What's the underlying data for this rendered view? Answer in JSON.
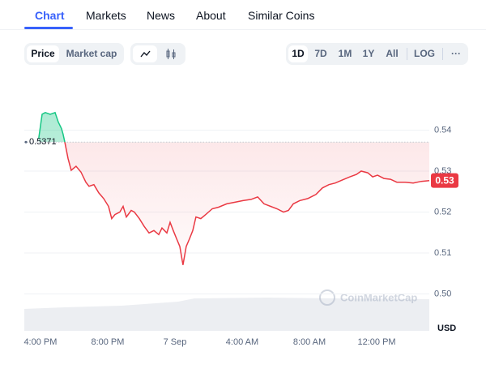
{
  "tabs": [
    "Chart",
    "Markets",
    "News",
    "About",
    "Similar Coins"
  ],
  "toggles": [
    "Price",
    "Market cap"
  ],
  "ranges": [
    "1D",
    "7D",
    "1M",
    "1Y",
    "All"
  ],
  "log_button": "LOG",
  "more_button": "···",
  "chart_data": {
    "type": "line",
    "x": [
      -0.1,
      0.1,
      0.29,
      0.58,
      0.87,
      1.06,
      1.25,
      1.35,
      1.45,
      1.64,
      1.83,
      2.12,
      2.41,
      2.7,
      2.89,
      3.18,
      3.47,
      3.76,
      4.05,
      4.24,
      4.43,
      4.72,
      4.92,
      5.11,
      5.4,
      5.59,
      5.88,
      6.17,
      6.46,
      6.75,
      7.04,
      7.23,
      7.52,
      7.71,
      7.9,
      8.1,
      8.29,
      8.48,
      8.67,
      8.87,
      9.06,
      9.25,
      9.54,
      9.83,
      10.22,
      10.6,
      11.08,
      11.57,
      12.05,
      12.53,
      12.92,
      13.3,
      13.69,
      14.07,
      14.46,
      14.75,
      15.04,
      15.42,
      15.9,
      16.39,
      16.77,
      17.16,
      17.54,
      17.93,
      18.41,
      18.8,
      19.08,
      19.47,
      19.76,
      20.05,
      20.43,
      20.82,
      21.2,
      21.69,
      22.17,
      22.65,
      23.13
    ],
    "values": [
      0.538,
      0.5439,
      0.5443,
      0.5439,
      0.5443,
      0.542,
      0.5404,
      0.539,
      0.5371,
      0.5331,
      0.5302,
      0.5312,
      0.5298,
      0.5273,
      0.5263,
      0.5267,
      0.5247,
      0.5233,
      0.5214,
      0.5184,
      0.5194,
      0.52,
      0.5214,
      0.5188,
      0.5204,
      0.52,
      0.5184,
      0.5165,
      0.5149,
      0.5155,
      0.5145,
      0.5161,
      0.5149,
      0.5175,
      0.5155,
      0.5135,
      0.5116,
      0.5071,
      0.5116,
      0.5135,
      0.5155,
      0.5188,
      0.5184,
      0.5194,
      0.5208,
      0.5212,
      0.522,
      0.5224,
      0.5228,
      0.5231,
      0.5237,
      0.522,
      0.5214,
      0.5208,
      0.52,
      0.5204,
      0.522,
      0.5228,
      0.5233,
      0.5243,
      0.5259,
      0.5267,
      0.5271,
      0.5278,
      0.5286,
      0.5292,
      0.53,
      0.5296,
      0.5286,
      0.529,
      0.5282,
      0.528,
      0.5273,
      0.5273,
      0.5271,
      0.5275,
      0.5277
    ],
    "xlim": [
      -0.96,
      23.13
    ],
    "ylim": [
      0.491,
      0.551
    ],
    "xticks": [
      {
        "value": 0,
        "label": "4:00 PM"
      },
      {
        "value": 4,
        "label": "8:00 PM"
      },
      {
        "value": 8,
        "label": "7 Sep"
      },
      {
        "value": 12,
        "label": "4:00 AM"
      },
      {
        "value": 16,
        "label": "8:00 AM"
      },
      {
        "value": 20,
        "label": "12:00 PM"
      }
    ],
    "yticks": [
      {
        "value": 0.5,
        "label": "0.50"
      },
      0.51,
      0.52,
      0.53,
      0.54
    ],
    "y_label": "USD",
    "reference": 0.5371,
    "current_label": "0.53",
    "up_color": "#16c784",
    "down_color": "#ea3943",
    "grid": true,
    "watermark": "CoinMarketCap"
  }
}
